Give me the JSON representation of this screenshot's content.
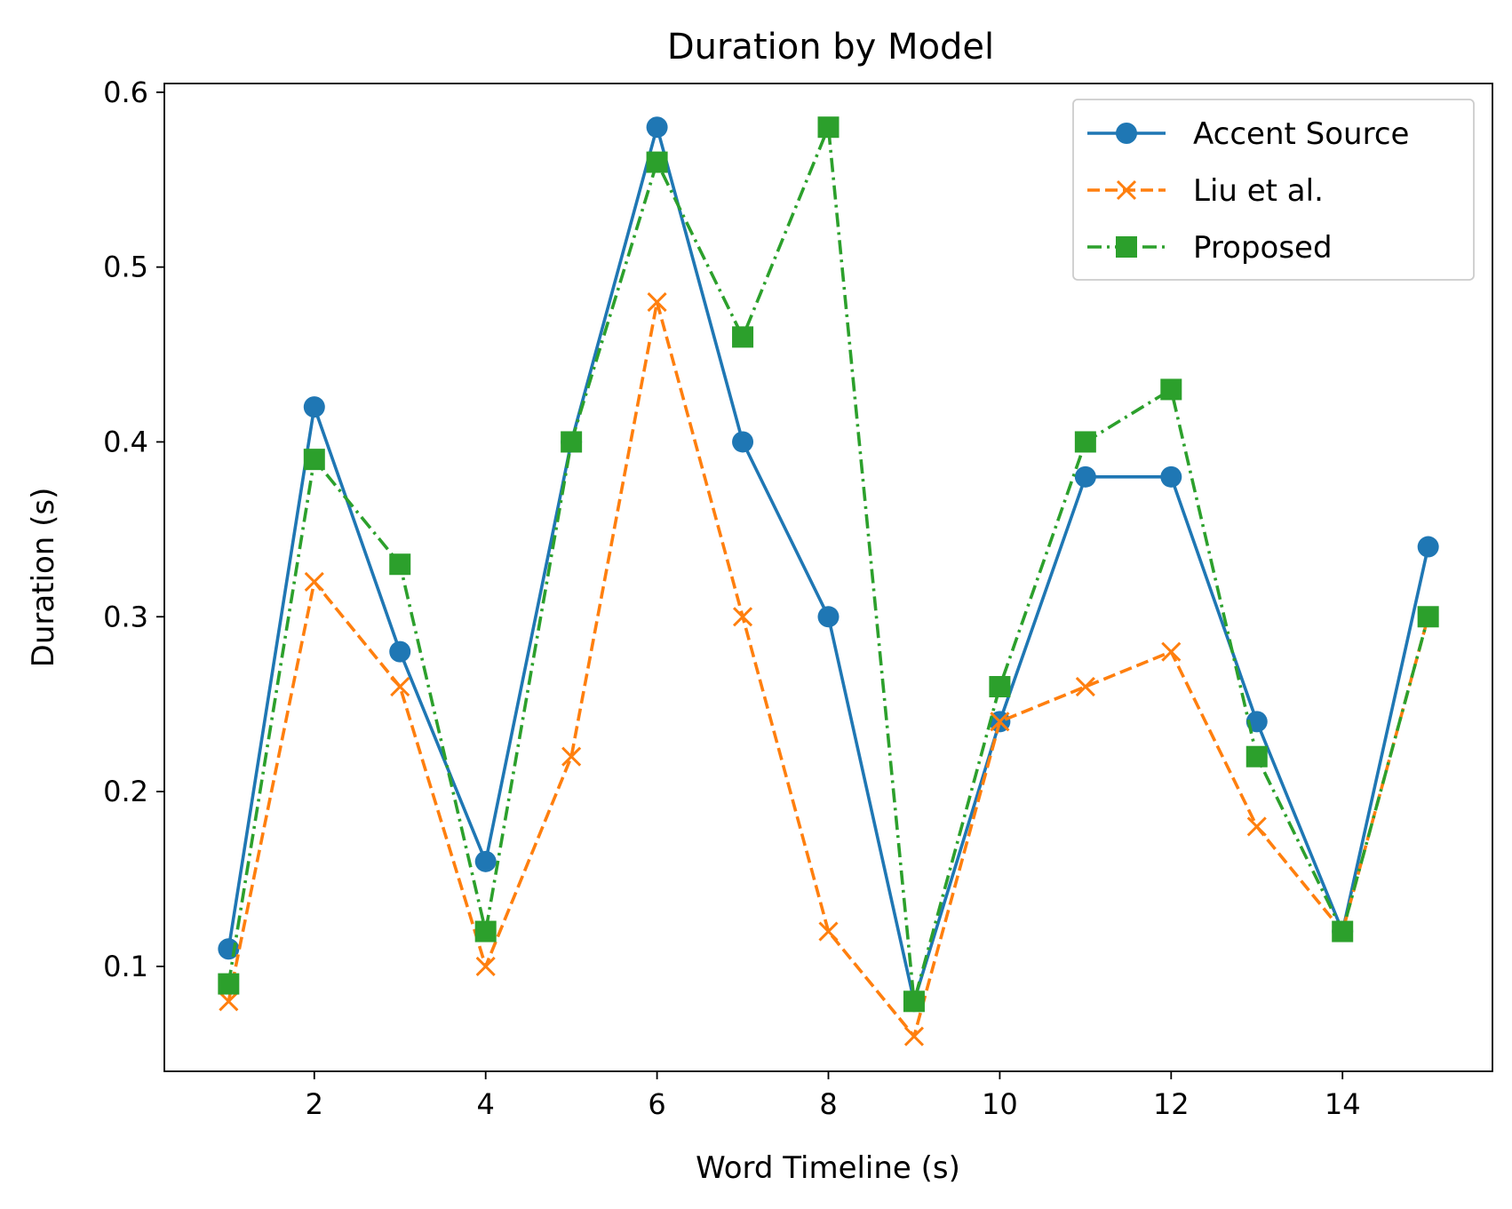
{
  "chart_data": {
    "type": "line",
    "title": "Duration by Model",
    "xlabel": "Word Timeline (s)",
    "ylabel": "Duration (s)",
    "xlim": [
      0.25,
      15.75
    ],
    "ylim": [
      0.04,
      0.605
    ],
    "xticks": [
      2,
      4,
      6,
      8,
      10,
      12,
      14
    ],
    "xtick_labels": [
      "2",
      "4",
      "6",
      "8",
      "10",
      "12",
      "14"
    ],
    "yticks": [
      0.1,
      0.2,
      0.3,
      0.4,
      0.5,
      0.6
    ],
    "ytick_labels": [
      "0.1",
      "0.2",
      "0.3",
      "0.4",
      "0.5",
      "0.6"
    ],
    "grid": false,
    "legend_position": "top-right",
    "x": [
      1,
      2,
      3,
      4,
      5,
      6,
      7,
      8,
      9,
      10,
      11,
      12,
      13,
      14,
      15
    ],
    "series": [
      {
        "name": "Accent Source",
        "color": "#1f77b4",
        "line_style": "solid",
        "marker": "circle",
        "values": [
          0.11,
          0.42,
          0.28,
          0.16,
          0.4,
          0.58,
          0.4,
          0.3,
          0.08,
          0.24,
          0.38,
          0.38,
          0.24,
          0.12,
          0.34
        ]
      },
      {
        "name": "Liu et al.",
        "color": "#ff7f0e",
        "line_style": "dashed",
        "marker": "x",
        "values": [
          0.08,
          0.32,
          0.26,
          0.1,
          0.22,
          0.48,
          0.3,
          0.12,
          0.06,
          0.24,
          0.26,
          0.28,
          0.18,
          0.12,
          0.3
        ]
      },
      {
        "name": "Proposed",
        "color": "#2ca02c",
        "line_style": "dashdot",
        "marker": "square",
        "values": [
          0.09,
          0.39,
          0.33,
          0.12,
          0.4,
          0.56,
          0.46,
          0.58,
          0.08,
          0.26,
          0.4,
          0.43,
          0.22,
          0.12,
          0.3
        ]
      }
    ]
  }
}
